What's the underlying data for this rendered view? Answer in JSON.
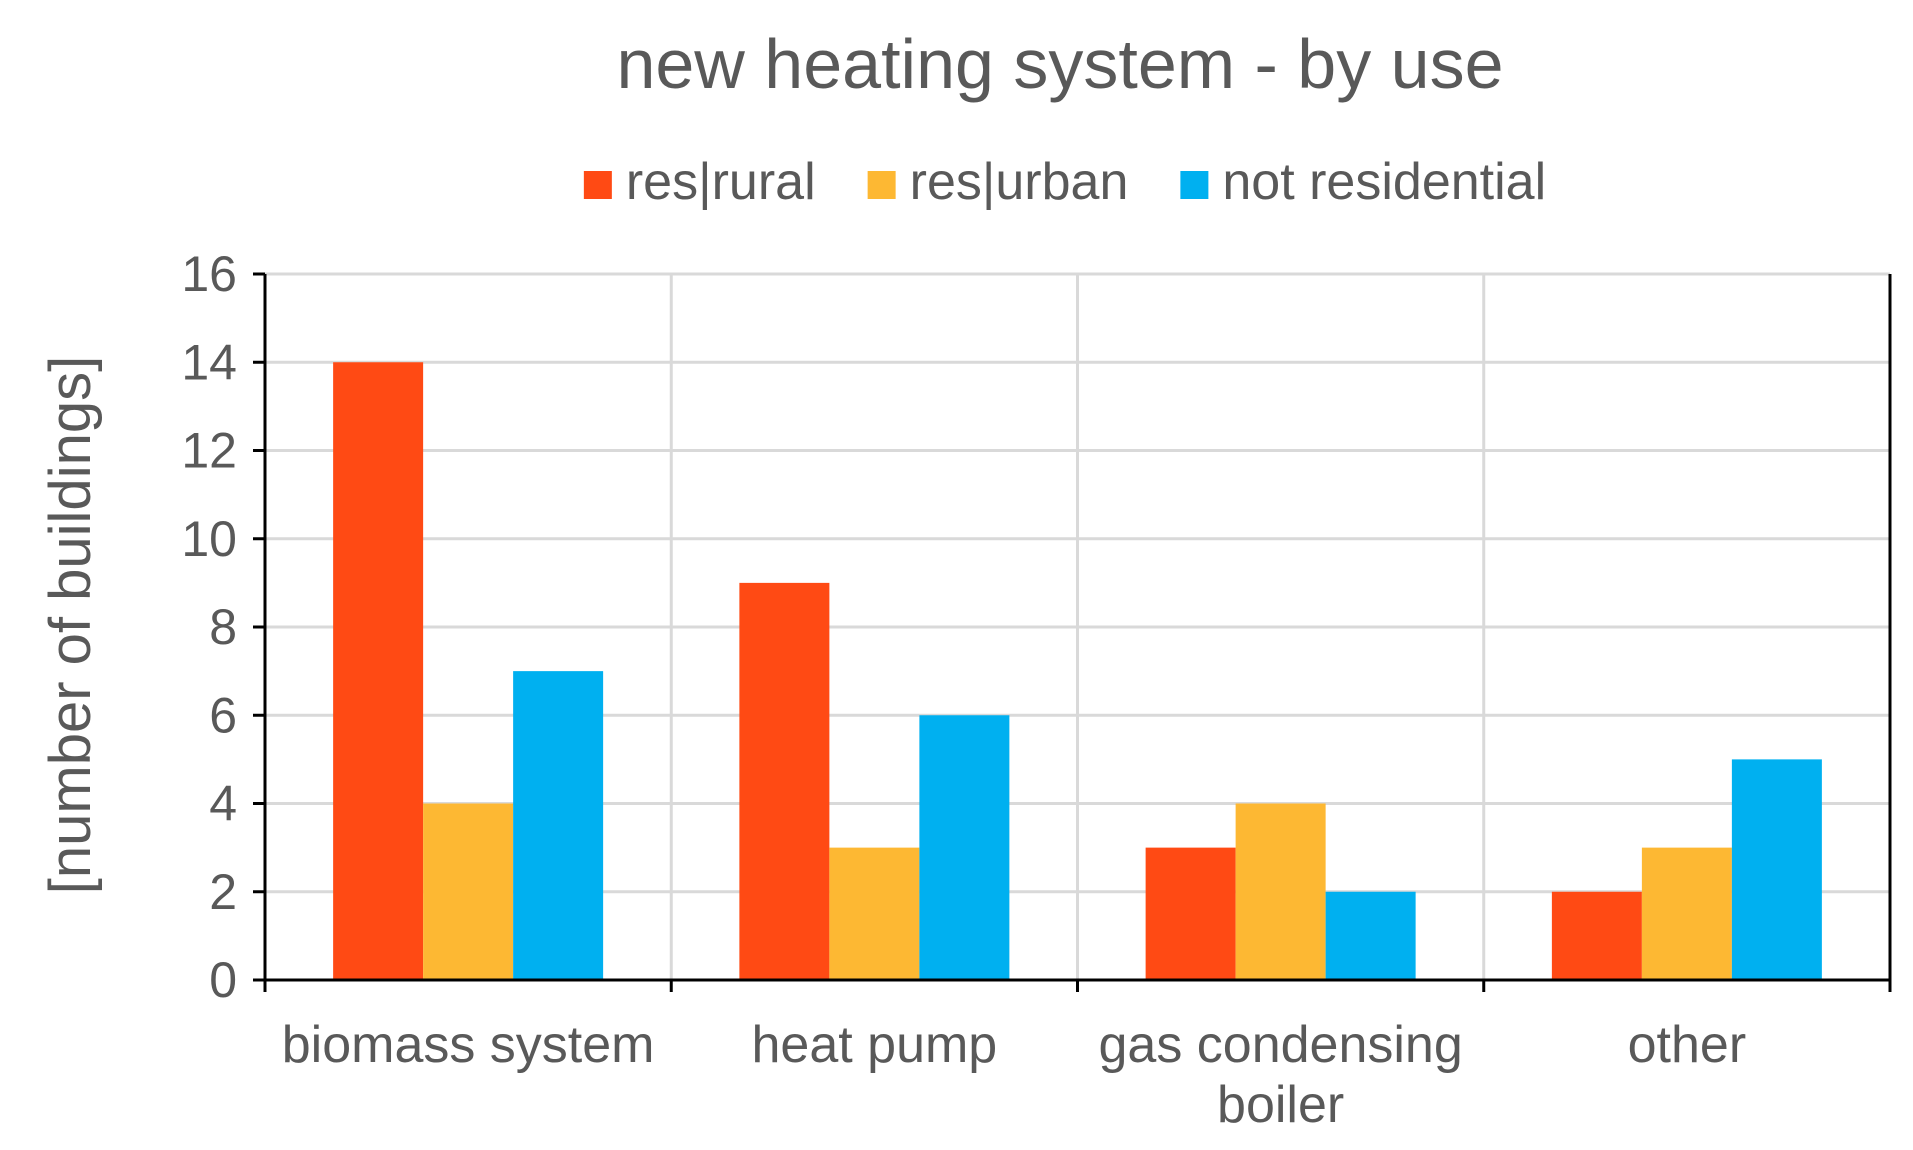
{
  "chart_data": {
    "type": "bar",
    "title": "new heating system - by use",
    "ylabel": "[number of buildings]",
    "xlabel": "",
    "ylim": [
      0,
      16
    ],
    "yticks": [
      0,
      2,
      4,
      6,
      8,
      10,
      12,
      14,
      16
    ],
    "grid": true,
    "legend_position": "top",
    "categories": [
      [
        "biomass system"
      ],
      [
        "heat pump"
      ],
      [
        "gas condensing",
        "boiler"
      ],
      [
        "other"
      ]
    ],
    "series": [
      {
        "name": "res|rural",
        "color": "#ff4a14",
        "values": [
          14,
          9,
          3,
          2
        ]
      },
      {
        "name": "res|urban",
        "color": "#fdb833",
        "values": [
          4,
          3,
          4,
          3
        ]
      },
      {
        "name": "not residential",
        "color": "#00b0f0",
        "values": [
          7,
          6,
          2,
          5
        ]
      }
    ]
  }
}
